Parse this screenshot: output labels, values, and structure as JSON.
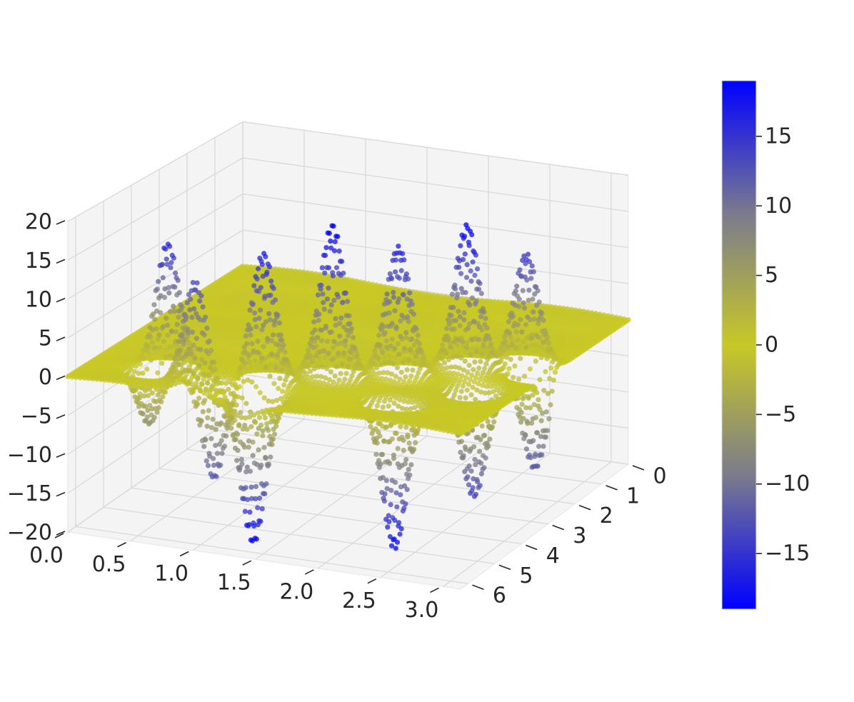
{
  "chart_data": {
    "type": "scatter",
    "projection": "3d",
    "x_axis": {
      "range": [
        0,
        3.14
      ],
      "tick_labels": [
        "0.0",
        "0.5",
        "1.0",
        "1.5",
        "2.0",
        "2.5",
        "3.0"
      ]
    },
    "y_axis": {
      "range": [
        0,
        6.28
      ],
      "tick_labels": [
        "0",
        "1",
        "2",
        "3",
        "4",
        "5",
        "6"
      ]
    },
    "z_axis": {
      "range": [
        -20,
        20
      ],
      "tick_labels": [
        "20",
        "15",
        "10",
        "5",
        "0",
        "−5",
        "−10",
        "−15",
        "−20"
      ]
    },
    "colorbar": {
      "range": [
        -19,
        19
      ],
      "tick_labels": [
        "15",
        "10",
        "5",
        "0",
        "−5",
        "−10",
        "−15"
      ],
      "colormap": [
        "#0000ff",
        "#7a7a8e",
        "#c8c826",
        "#7a7a8e",
        "#0000ff"
      ]
    },
    "surface_peaks": [
      {
        "x": 0.55,
        "y": 5.2,
        "z": 18
      },
      {
        "x": 0.95,
        "y": 5.9,
        "z": 16
      },
      {
        "x": 1.35,
        "y": 5.3,
        "z": 17
      },
      {
        "x": 1.75,
        "y": 4.6,
        "z": 20
      },
      {
        "x": 2.15,
        "y": 4.0,
        "z": 17
      },
      {
        "x": 2.55,
        "y": 3.3,
        "z": 19
      },
      {
        "x": 2.9,
        "y": 2.7,
        "z": 15
      },
      {
        "x": 1.4,
        "y": 5.9,
        "z": -19
      },
      {
        "x": 2.4,
        "y": 5.3,
        "z": -19
      },
      {
        "x": 1.0,
        "y": 5.6,
        "z": -15
      },
      {
        "x": 2.8,
        "y": 4.2,
        "z": -14
      },
      {
        "x": 3.05,
        "y": 3.1,
        "z": -13
      },
      {
        "x": 0.5,
        "y": 5.5,
        "z": -9
      }
    ],
    "grid": true,
    "legend": "none"
  }
}
